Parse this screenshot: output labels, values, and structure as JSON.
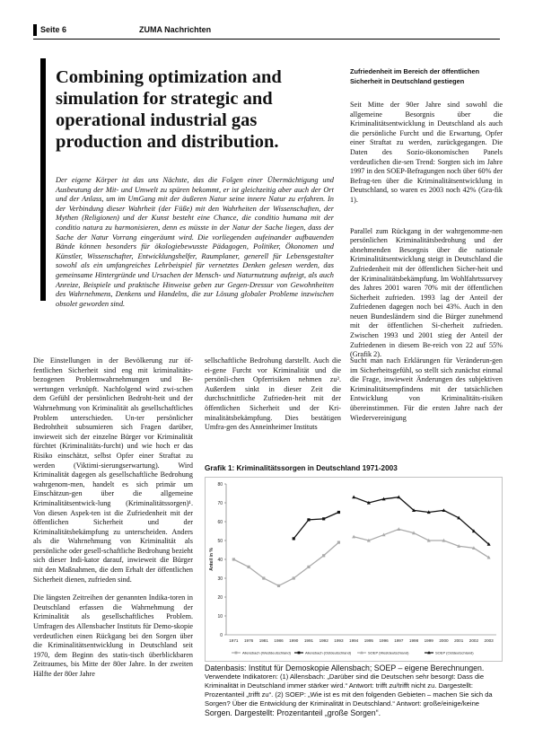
{
  "header": {
    "page": "Seite 6",
    "publication": "ZUMA Nachrichten"
  },
  "article": {
    "title": "Combining optimization and simulation for strategic and operational industrial gas production and distribution.",
    "abstract": "Der eigene Körper ist das uns Nächste, das die Folgen einer Übermächtigung und Ausbeutung der Mit- und Umwelt zu spüren bekommt, er ist gleichzeitig aber auch der Ort und der Anlass, um im UmGang mit der äußeren Natur seine innere Natur zu erfahren. In der Verbindung dieser Wahrheit (der Füße) mit den Wahrheiten der Wissenschaften, der Mythen (Religionen) und der Kunst besteht eine Chance, die conditio humana mit der conditio natura zu harmonisieren, denn es müsste in der Natur der Sache liegen, dass der Sache der Natur Vorrang eingeräumt wird. Die vorliegenden aufeinander aufbauenden Bände können besonders für ökologiebewusste Pädagogen, Politiker, Ökonomen und Künstler, Wissenschafter, Entwicklungshelfer, Raumplaner, generell für Lebensgestalter sowohl als ein umfangreiches Lehrbeispiel für vernetztes Denken gelesen werden, das gemeinsame Hintergründe und Ursachen der Mensch- und Naturnutzung aufzeigt, als auch Anreize, Beispiele und praktische Hinweise geben zur Gegen-Dressur von Gewohnheiten des Wahrnehmens, Denkens und Handelns, die zur Lösung globaler Probleme inzwischen obsolet geworden sind."
  },
  "sidebar": {
    "heading": "Zufriedenheit im Bereich der öffentlichen Sicherheit in Deutschland gestiegen",
    "p1": "Seit Mitte der 90er Jahre sind sowohl die allgemeine Besorgnis über die Kriminalitätsentwicklung in Deutschland als auch die persönliche Furcht und die Erwartung, Opfer einer Straftat zu werden, zurückgegangen. Die Daten des Sozio-ökonomischen Panels verdeutlichen die-sen Trend: Sorgten sich im Jahre 1997 in den SOEP-Befragungen noch über 60% der Befrag-ten über die Kriminalitätsentwicklung in Deutschland, so waren es 2003 noch 42% (Gra-fik 1).",
    "p2": "Parallel zum Rückgang in der wahrgenomme-nen persönlichen Kriminalitätsbedrohung und der abnehmenden Besorgnis über die nationale Kriminalitätsentwicklung steigt in Deutschland die Zufriedenheit mit der öffentlichen Sicher-heit und der Kriminalitätsbekämpfung. Im Wohlfahrtssurvey des Jahres 2001 waren 70% mit der öffentlichen Sicherheit zufrieden. 1993 lag der Anteil der Zufriedenen dagegen noch bei 43%. Auch in den neuen Bundesländern sind die Bürger zunehmend mit der öffentlichen Si-cherheit zufrieden. Zwischen 1993 und 2001 stieg der Anteil der Zufriedenen in diesem Be-reich von 22 auf 55% (Grafik 2)."
  },
  "body": {
    "col1_p1": "Die Einstellungen in der Bevölkerung zur öf-fentlichen Sicherheit sind eng mit kriminalitäts-bezogenen Problemwahrnehmungen und Be-wertungen verknüpft. Nachfolgend wird zwi-schen dem Gefühl der persönlichen Bedroht-heit und der Wahrnehmung von Kriminalität als gesellschaftliches Problem unterschieden. Un-ter persönlicher Bedrohtheit subsumieren sich Fragen darüber, inwieweit sich der einzelne Bürger vor Kriminalität fürchtet (Kriminalitäts-furcht) und wie hoch er das Risiko einschätzt, selbst Opfer einer Straftat zu werden (Viktimi-sierungserwartung). Wird Kriminalität dagegen als gesellschaftliche Bedrohung wahrgenom-men, handelt es sich primär um Einschätzun-gen über die allgemeine Kriminalitätsentwick-lung (Kriminalitätssorgen)¹. Von diesen Aspek-ten ist die Zufriedenheit mit der öffentlichen Sicherheit und der Kriminalitätsbekämpfung zu unterscheiden. Anders als die Wahrnehmung von Kriminalität als persönliche oder gesell-schaftliche Bedrohung bezieht sich dieser Indi-kator darauf, inwieweit die Bürger mit den Maßnahmen, die dem Erhalt der öffentlichen Sicherheit dienen, zufrieden sind.",
    "col1_p2": "Die längsten Zeitreihen der genannten Indika-toren in Deutschland erfassen die Wahrnehmung der Kriminalität als gesellschaftliches Problem. Umfragen des Allensbacher Instituts für Demo-skopie verdeutlichen einen Rückgang bei den Sorgen über die Kriminalitätsentwicklung in Deutschland seit 1970, dem Beginn des statis-tisch überblickbaren Zeitraumes, bis Mitte der 80er Jahre. In der zweiten Hälfte der 80er Jahre",
    "col2_p1": "sellschaftliche Bedrohung darstellt. Auch die ei-gene Furcht vor Kriminalität und die persönli-chen Opferrisiken nehmen zu². Außerdem sinkt in dieser Zeit die durchschnittliche Zufrieden-heit mit der öffentlichen Sicherheit und der Kri-minalitätsbekämpfung. Dies bestätigen Umfra-gen des Anneinheimer Instituts",
    "col3_p1": "Sucht man nach Erklärungen für Veränderun-gen im Sicherheitsgefühl, so stellt sich zunächst einmal die Frage, inwieweit Änderungen des subjektiven Kriminalitätsempfindens mit der tatsächlichen Entwicklung von Kriminalitäts-risiken übereinstimmen. Für die ersten Jahre nach der Wiedervereinigung"
  },
  "chart_data": {
    "type": "line",
    "title": "Grafik 1: Kriminalitätssorgen in Deutschland 1971-2003",
    "ylabel": "Anteil in %",
    "ylim": [
      0,
      80
    ],
    "yticks": [
      "0",
      "10",
      "20",
      "30",
      "40",
      "50",
      "60",
      "70",
      "80"
    ],
    "xticks": [
      "1971",
      "1976",
      "1981",
      "1986",
      "1990",
      "1991",
      "1992",
      "1993",
      "1994",
      "1995",
      "1996",
      "1997",
      "1998",
      "1999",
      "2000",
      "2001",
      "2002",
      "2003"
    ],
    "series": [
      {
        "name": "Allensbach (Westdeutschland)",
        "color": "#aaaaaa",
        "marker": "square",
        "values": [
          40,
          36,
          30,
          26,
          30,
          36,
          42,
          49,
          null,
          null,
          null,
          null,
          null,
          null,
          null,
          null,
          null,
          null
        ]
      },
      {
        "name": "Allensbach (Ostdeutschland)",
        "color": "#111111",
        "marker": "square",
        "values": [
          null,
          null,
          null,
          null,
          51,
          61,
          61.5,
          65,
          null,
          null,
          null,
          null,
          null,
          null,
          null,
          null,
          null,
          null
        ]
      },
      {
        "name": "SOEP (Westdeutschland)",
        "color": "#aaaaaa",
        "marker": "triangle",
        "values": [
          null,
          null,
          null,
          null,
          null,
          null,
          null,
          null,
          52,
          50,
          53,
          56,
          54,
          50,
          50,
          47,
          46,
          41
        ]
      },
      {
        "name": "SOEP (Ostdeutschland)",
        "color": "#111111",
        "marker": "triangle",
        "values": [
          null,
          null,
          null,
          null,
          null,
          null,
          null,
          null,
          73,
          70,
          72,
          73,
          66,
          65,
          66,
          62,
          55,
          48
        ]
      }
    ]
  },
  "caption": {
    "line1": "Datenbasis: Institut für Demoskopie Allensbach; SOEP – eigene Berechnungen.",
    "line2": "Verwendete Indikatoren: (1) Allensbach: „Darüber sind die Deutschen sehr besorgt: Dass die Kriminalität in Deutschland immer stärker wird.“ Antwort: trifft zu/trifft nicht zu. Dargestellt: Prozentanteil „trifft zu“. (2) SOEP: „Wie ist es mit den folgenden Gebieten – machen Sie sich da Sorgen? Über die Entwicklung der Kriminalität in Deutschland.“ Antwort: große/einige/keine",
    "line3": "Sorgen. Dargestellt: Prozentanteil „große Sorgen“."
  }
}
